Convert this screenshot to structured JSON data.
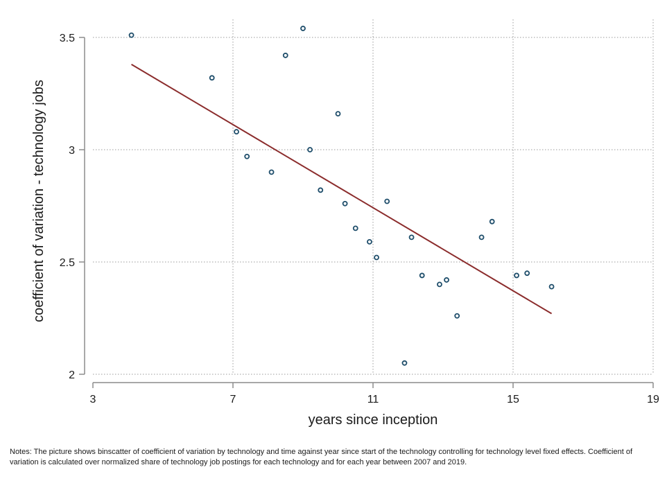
{
  "chart_data": {
    "type": "scatter",
    "xlabel": "years since inception",
    "ylabel": "coefficient of variation - technology jobs",
    "xlim": [
      3,
      19
    ],
    "ylim": [
      2,
      3.5
    ],
    "xticks": [
      3,
      7,
      11,
      15,
      19
    ],
    "yticks": [
      2,
      2.5,
      3,
      3.5
    ],
    "xtick_labels": [
      "3",
      "7",
      "11",
      "15",
      "19"
    ],
    "ytick_labels": [
      "2",
      "2.5",
      "3",
      "3.5"
    ],
    "grid": true,
    "colors": {
      "points": "#1f4e6b",
      "fit_line": "#8b2c2c",
      "grid": "#9a9a9a",
      "axis": "#8c8c8c"
    },
    "points": [
      {
        "x": 4.1,
        "y": 3.51
      },
      {
        "x": 6.4,
        "y": 3.32
      },
      {
        "x": 7.1,
        "y": 3.08
      },
      {
        "x": 7.4,
        "y": 2.97
      },
      {
        "x": 8.1,
        "y": 2.9
      },
      {
        "x": 8.5,
        "y": 3.42
      },
      {
        "x": 9.0,
        "y": 3.54
      },
      {
        "x": 9.2,
        "y": 3.0
      },
      {
        "x": 9.5,
        "y": 2.82
      },
      {
        "x": 10.0,
        "y": 3.16
      },
      {
        "x": 10.2,
        "y": 2.76
      },
      {
        "x": 10.5,
        "y": 2.65
      },
      {
        "x": 10.9,
        "y": 2.59
      },
      {
        "x": 11.1,
        "y": 2.52
      },
      {
        "x": 11.4,
        "y": 2.77
      },
      {
        "x": 11.9,
        "y": 2.05
      },
      {
        "x": 12.1,
        "y": 2.61
      },
      {
        "x": 12.4,
        "y": 2.44
      },
      {
        "x": 12.9,
        "y": 2.4
      },
      {
        "x": 13.1,
        "y": 2.42
      },
      {
        "x": 13.4,
        "y": 2.26
      },
      {
        "x": 14.1,
        "y": 2.61
      },
      {
        "x": 14.4,
        "y": 2.68
      },
      {
        "x": 15.1,
        "y": 2.44
      },
      {
        "x": 15.4,
        "y": 2.45
      },
      {
        "x": 16.1,
        "y": 2.39
      }
    ],
    "fit_line": {
      "x": [
        4.1,
        16.1
      ],
      "y": [
        3.38,
        2.27
      ]
    }
  },
  "notes": "Notes: The picture shows binscatter of coefficient of variation by technology and time against year since start of the technology controlling for technology level fixed effects. Coefficient of variation is calculated over normalized share of technology job postings for each technology  and for each year between 2007 and 2019."
}
